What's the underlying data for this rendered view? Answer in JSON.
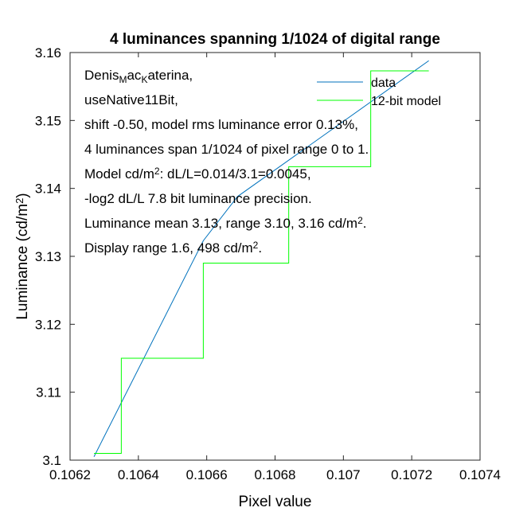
{
  "chart_data": {
    "type": "line",
    "title": "4 luminances spanning 1/1024 of digital range",
    "xlabel": "Pixel value",
    "ylabel_parts": [
      "Luminance (cd/m",
      "2",
      ")"
    ],
    "xlim": [
      0.1062,
      0.1074
    ],
    "ylim": [
      3.1,
      3.16
    ],
    "xticks": [
      0.1062,
      0.1064,
      0.1066,
      0.1068,
      0.107,
      0.1072,
      0.1074
    ],
    "xtick_labels": [
      "0.1062",
      "0.1064",
      "0.1066",
      "0.1068",
      "0.107",
      "0.1072",
      "0.1074"
    ],
    "yticks": [
      3.1,
      3.11,
      3.12,
      3.13,
      3.14,
      3.15,
      3.16
    ],
    "ytick_labels": [
      "3.1",
      "3.11",
      "3.12",
      "3.13",
      "3.14",
      "3.15",
      "3.16"
    ],
    "grid": false,
    "legend_position": "top-right",
    "series": [
      {
        "name": "data",
        "color": "#0072bd",
        "style": "line",
        "x": [
          0.10627,
          0.10659,
          0.10669,
          0.10725
        ],
        "y": [
          3.1005,
          3.1323,
          3.1388,
          3.1588
        ]
      },
      {
        "name": "12-bit model",
        "color": "#00ff00",
        "style": "step",
        "x": [
          0.10627,
          0.10635,
          0.10635,
          0.10659,
          0.10659,
          0.10684,
          0.10684,
          0.10708,
          0.10708,
          0.10725
        ],
        "y": [
          3.101,
          3.101,
          3.115,
          3.115,
          3.129,
          3.129,
          3.1432,
          3.1432,
          3.1573,
          3.1573
        ]
      }
    ],
    "annotation_lines": [
      {
        "parts": [
          {
            "t": "Denis"
          },
          {
            "t": "M",
            "sub": true
          },
          {
            "t": "ac"
          },
          {
            "t": "K",
            "sub": true
          },
          {
            "t": "aterina,"
          }
        ]
      },
      {
        "parts": [
          {
            "t": "useNative11Bit,"
          }
        ]
      },
      {
        "parts": [
          {
            "t": "shift -0.50, model rms luminance error 0.13%,"
          }
        ]
      },
      {
        "parts": [
          {
            "t": "4 luminances span 1/1024 of pixel range 0 to 1."
          }
        ]
      },
      {
        "parts": [
          {
            "t": "Model cd/m"
          },
          {
            "t": "2",
            "sup": true
          },
          {
            "t": ": dL/L=0.014/3.1=0.0045,"
          }
        ]
      },
      {
        "parts": [
          {
            "t": "-log2 dL/L 7.8 bit luminance precision."
          }
        ]
      },
      {
        "parts": [
          {
            "t": "Luminance mean 3.13, range 3.10, 3.16 cd/m"
          },
          {
            "t": "2",
            "sup": true
          },
          {
            "t": "."
          }
        ]
      },
      {
        "parts": [
          {
            "t": "Display range 1.6, 498 cd/m"
          },
          {
            "t": "2",
            "sup": true
          },
          {
            "t": "."
          }
        ]
      }
    ]
  }
}
